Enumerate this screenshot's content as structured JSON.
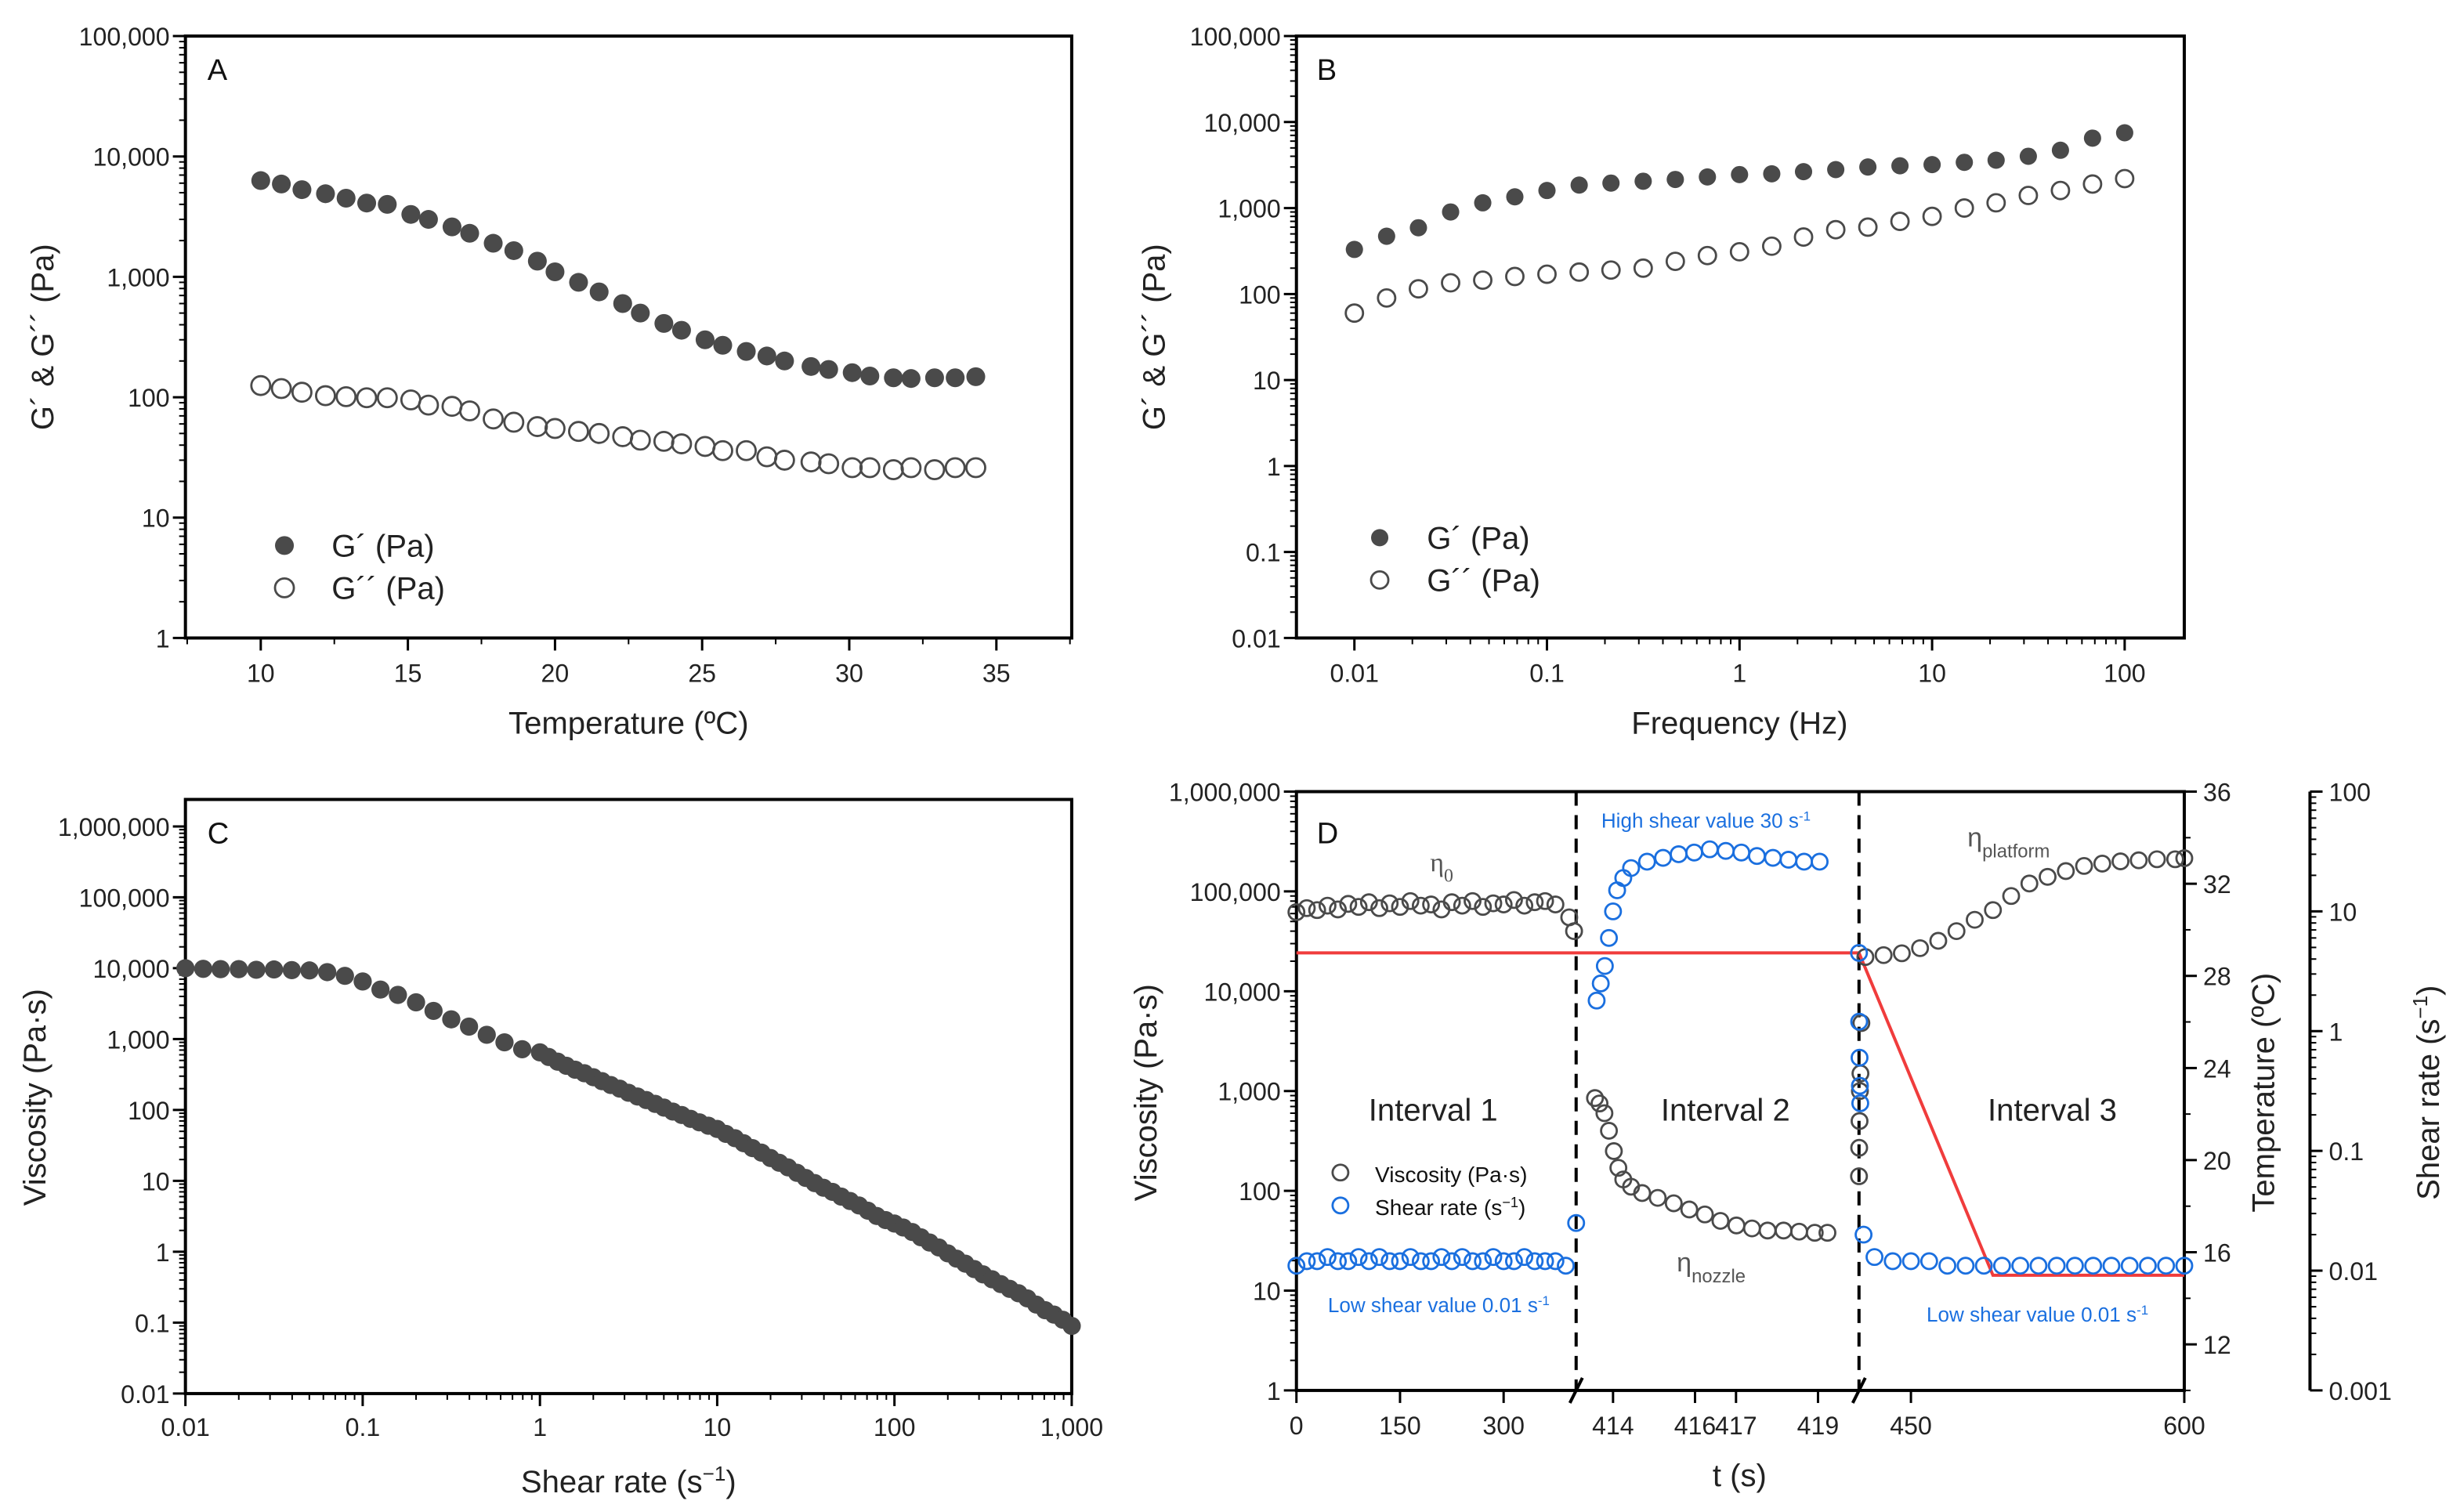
{
  "colors": {
    "marker": "#4a4a4a",
    "blue": "#1a6fdf",
    "red": "#f03c3c",
    "axis": "#000000"
  },
  "chart_data": [
    {
      "panel": "A",
      "type": "scatter",
      "xlabel": "Temperature (ºC)",
      "ylabel": "G´ & G´´ (Pa)",
      "xscale": "linear",
      "yscale": "log",
      "xlim": [
        7.44,
        37.56
      ],
      "ylim": [
        1,
        100000
      ],
      "xticks": [
        10,
        15,
        20,
        25,
        30,
        35
      ],
      "xtick_labels": [
        "10",
        "15",
        "20",
        "25",
        "30",
        "35"
      ],
      "yticks": [
        1,
        10,
        100,
        1000,
        10000,
        100000
      ],
      "ytick_labels": [
        "1",
        "10",
        "100",
        "1,000",
        "10,000",
        "100,000"
      ],
      "legend_position": "bottom-left",
      "x": [
        10,
        10.7,
        11.4,
        12.2,
        12.9,
        13.6,
        14.3,
        15.1,
        15.7,
        16.5,
        17.1,
        17.9,
        18.6,
        19.4,
        20,
        20.8,
        21.5,
        22.3,
        22.9,
        23.7,
        24.3,
        25.1,
        25.7,
        26.5,
        27.2,
        27.8,
        28.7,
        29.3,
        30.1,
        30.7,
        31.5,
        32.1,
        32.9,
        33.6,
        34.3
      ],
      "series": [
        {
          "name": "G´ (Pa)",
          "marker": "filled",
          "values": [
            6300,
            5900,
            5300,
            4900,
            4500,
            4100,
            4000,
            3300,
            3000,
            2600,
            2300,
            1900,
            1650,
            1350,
            1100,
            900,
            750,
            600,
            500,
            410,
            360,
            300,
            270,
            240,
            220,
            200,
            180,
            170,
            160,
            150,
            145,
            143,
            145,
            145,
            148
          ]
        },
        {
          "name": "G´´ (Pa)",
          "marker": "open",
          "values": [
            125,
            118,
            110,
            103,
            101,
            99,
            99,
            95,
            86,
            84,
            77,
            66,
            62,
            57,
            55,
            52,
            50,
            47,
            44,
            43,
            41,
            39,
            36,
            36,
            32,
            30,
            29,
            28,
            26,
            26,
            25,
            26,
            25,
            26,
            26
          ]
        }
      ]
    },
    {
      "panel": "B",
      "type": "scatter",
      "xlabel": "Frequency (Hz)",
      "ylabel": "G´ & G´´ (Pa)",
      "xscale": "log",
      "yscale": "log",
      "xlim": [
        0.005,
        204
      ],
      "ylim": [
        0.01,
        100000
      ],
      "xticks": [
        0.01,
        0.1,
        1,
        10,
        100
      ],
      "xtick_labels": [
        "0.01",
        "0.1",
        "1",
        "10",
        "100"
      ],
      "yticks": [
        0.01,
        0.1,
        1,
        10,
        100,
        1000,
        10000,
        100000
      ],
      "ytick_labels": [
        "0.01",
        "0.1",
        "1",
        "10",
        "100",
        "1,000",
        "10,000",
        "100,000"
      ],
      "legend_position": "bottom-left",
      "x": [
        0.01,
        0.0147,
        0.0215,
        0.0316,
        0.0464,
        0.0681,
        0.1,
        0.147,
        0.215,
        0.316,
        0.464,
        0.681,
        1,
        1.47,
        2.15,
        3.16,
        4.64,
        6.81,
        10,
        14.7,
        21.5,
        31.6,
        46.4,
        68.1,
        100
      ],
      "series": [
        {
          "name": "G´ (Pa)",
          "marker": "filled",
          "values": [
            330,
            470,
            590,
            900,
            1150,
            1350,
            1600,
            1850,
            1950,
            2050,
            2150,
            2300,
            2450,
            2500,
            2650,
            2800,
            3000,
            3100,
            3200,
            3400,
            3600,
            4000,
            4700,
            6500,
            7500
          ]
        },
        {
          "name": "G´´ (Pa)",
          "marker": "open",
          "values": [
            60,
            90,
            115,
            135,
            145,
            160,
            170,
            180,
            190,
            200,
            240,
            280,
            310,
            360,
            460,
            560,
            600,
            700,
            800,
            1000,
            1150,
            1400,
            1600,
            1900,
            2200
          ]
        }
      ]
    },
    {
      "panel": "C",
      "type": "scatter",
      "xlabel": "Shear rate (s",
      "xlabel_sup": "−1",
      "xlabel_end": ")",
      "ylabel": "Viscosity (Pa·s)",
      "xscale": "log",
      "yscale": "log",
      "xlim": [
        0.01,
        1000
      ],
      "ylim": [
        0.01,
        2400000
      ],
      "xticks": [
        0.01,
        0.1,
        1,
        10,
        100,
        1000
      ],
      "xtick_labels": [
        "0.01",
        "0.1",
        "1",
        "10",
        "100",
        "1,000"
      ],
      "yticks": [
        0.01,
        0.1,
        1,
        10,
        100,
        1000,
        10000,
        100000,
        1000000
      ],
      "ytick_labels": [
        "0.01",
        "0.1",
        "1",
        "10",
        "100",
        "1,000",
        "10,000",
        "100,000",
        "1,000,000"
      ],
      "x": [
        0.01,
        0.0126,
        0.0158,
        0.02,
        0.0251,
        0.0316,
        0.0398,
        0.0501,
        0.0631,
        0.0794,
        0.1,
        0.126,
        0.158,
        0.2,
        0.251,
        0.316,
        0.398,
        0.501,
        0.631,
        0.794,
        1,
        1.12,
        1.26,
        1.41,
        1.58,
        1.78,
        2.0,
        2.24,
        2.51,
        2.82,
        3.16,
        3.55,
        3.98,
        4.47,
        5.01,
        5.62,
        6.31,
        7.08,
        7.94,
        8.91,
        10,
        11.2,
        12.6,
        14.1,
        15.8,
        17.8,
        20,
        22.4,
        25.1,
        28.2,
        31.6,
        35.5,
        39.8,
        44.7,
        50.1,
        56.2,
        63.1,
        70.8,
        79.4,
        89.1,
        100,
        112,
        126,
        141,
        158,
        178,
        200,
        224,
        251,
        282,
        316,
        355,
        398,
        447,
        501,
        562,
        631,
        708,
        794,
        891,
        1000
      ],
      "series": [
        {
          "name": "Viscosity",
          "marker": "filled",
          "values": [
            10000,
            9800,
            9700,
            9700,
            9500,
            9600,
            9400,
            9300,
            8800,
            7800,
            6500,
            5000,
            4200,
            3300,
            2500,
            1900,
            1500,
            1150,
            900,
            720,
            650,
            560,
            480,
            420,
            370,
            330,
            290,
            255,
            225,
            200,
            175,
            155,
            138,
            122,
            108,
            95,
            85,
            75,
            67,
            60,
            54,
            46,
            40,
            34,
            29,
            25,
            21,
            18,
            15.5,
            13,
            11,
            9.3,
            8,
            7,
            6,
            5.2,
            4.5,
            3.8,
            3.2,
            2.8,
            2.5,
            2.2,
            1.9,
            1.6,
            1.35,
            1.15,
            0.95,
            0.8,
            0.68,
            0.57,
            0.48,
            0.41,
            0.35,
            0.3,
            0.26,
            0.22,
            0.18,
            0.15,
            0.13,
            0.11,
            0.09
          ]
        }
      ]
    },
    {
      "panel": "D",
      "type": "scatter",
      "xlabel": "t (s)",
      "ylabel": "Viscosity (Pa·s)",
      "ylabel_right1": "Temperature (ºC)",
      "ylabel_right2": "Shear rate (s",
      "ylabel_right2_sup": "−1",
      "ylabel_right2_end": ")",
      "x_segments": [
        [
          0,
          405
        ],
        [
          413.1,
          420
        ],
        [
          421.5,
          600
        ]
      ],
      "xticks": [
        0,
        150,
        300,
        414,
        416,
        417,
        419,
        450,
        600
      ],
      "xtick_labels": [
        "0",
        "150",
        "300",
        "414",
        "416",
        "417",
        "419",
        "450",
        "600"
      ],
      "ylim": [
        1,
        1000000
      ],
      "yticks": [
        1,
        10,
        100,
        1000,
        10000,
        100000,
        1000000
      ],
      "ytick_labels": [
        "1",
        "10",
        "100",
        "1,000",
        "10,000",
        "100,000",
        "1,000,000"
      ],
      "temp_lim": [
        10,
        36
      ],
      "temp_ticks": [
        12,
        16,
        20,
        24,
        28,
        32,
        36
      ],
      "temp_tick_labels": [
        "12",
        "16",
        "20",
        "24",
        "28",
        "32",
        "36"
      ],
      "shear_lim": [
        0.001,
        100
      ],
      "shear_ticks": [
        0.001,
        0.01,
        0.1,
        1,
        10,
        100
      ],
      "shear_tick_labels": [
        "0.001",
        "0.01",
        "0.1",
        "1",
        "10",
        "100"
      ],
      "intervals": [
        "Interval 1",
        "Interval 2",
        "Interval 3"
      ],
      "annotations": {
        "eta": "η",
        "eta0_sub": "0",
        "eta_nozzle_sub": "nozzle",
        "eta_platform_sub": "platform",
        "high_shear": "High shear value 30 s",
        "low_shear_1": "Low shear value 0.01 s",
        "low_shear_2": "Low shear value 0.01 s",
        "sup": "-1"
      },
      "legend": [
        {
          "name": "Viscosity (Pa·s)",
          "marker": "open-gray"
        },
        {
          "name": "Shear rate (s",
          "sup": "−1",
          "end": ")",
          "marker": "open-blue"
        }
      ],
      "viscosity": {
        "t": [
          0,
          15,
          30,
          45,
          60,
          75,
          90,
          105,
          120,
          135,
          150,
          165,
          180,
          195,
          210,
          225,
          240,
          255,
          270,
          285,
          300,
          315,
          330,
          345,
          360,
          375,
          395,
          402,
          413.56,
          413.67,
          413.79,
          413.9,
          414.02,
          414.13,
          414.25,
          414.44,
          414.71,
          415.09,
          415.48,
          415.86,
          416.24,
          416.62,
          417.01,
          417.39,
          417.77,
          418.16,
          418.54,
          418.92,
          419.23,
          421.5,
          421.6,
          421.8,
          422.0,
          422.3,
          422.8,
          425,
          435,
          445,
          455,
          465,
          475,
          485,
          495,
          505,
          515,
          525,
          535,
          545,
          555,
          565,
          575,
          585,
          595,
          600
        ],
        "values": [
          62000,
          68000,
          65000,
          72000,
          66000,
          75000,
          70000,
          78000,
          68000,
          76000,
          70000,
          80000,
          72000,
          74000,
          66000,
          78000,
          72000,
          80000,
          70000,
          76000,
          74000,
          82000,
          72000,
          78000,
          80000,
          74000,
          55000,
          40000,
          850,
          750,
          600,
          400,
          250,
          170,
          130,
          110,
          95,
          85,
          75,
          65,
          58,
          50,
          45,
          42,
          40,
          40,
          39,
          38,
          38,
          140,
          270,
          500,
          1000,
          1500,
          4800,
          22000,
          23000,
          24000,
          27000,
          32000,
          40000,
          52000,
          65000,
          90000,
          120000,
          140000,
          160000,
          180000,
          190000,
          200000,
          205000,
          210000,
          210000,
          215000
        ]
      },
      "shear_rate": {
        "t": [
          0,
          15,
          30,
          45,
          60,
          75,
          90,
          105,
          120,
          135,
          150,
          165,
          180,
          195,
          210,
          225,
          240,
          255,
          270,
          285,
          300,
          315,
          330,
          345,
          360,
          375,
          390,
          405,
          413.6,
          413.7,
          413.8,
          413.9,
          414.0,
          414.1,
          414.25,
          414.44,
          414.83,
          415.22,
          415.6,
          415.98,
          416.36,
          416.75,
          417.13,
          417.51,
          417.9,
          418.28,
          418.66,
          419.04,
          421.5,
          421.6,
          421.8,
          422.0,
          422.2,
          424,
          430,
          440,
          450,
          460,
          470,
          480,
          490,
          500,
          510,
          520,
          530,
          540,
          550,
          560,
          570,
          580,
          590,
          600
        ],
        "values": [
          0.011,
          0.012,
          0.012,
          0.013,
          0.012,
          0.012,
          0.013,
          0.012,
          0.013,
          0.012,
          0.012,
          0.013,
          0.012,
          0.012,
          0.013,
          0.012,
          0.013,
          0.012,
          0.012,
          0.013,
          0.012,
          0.012,
          0.013,
          0.012,
          0.012,
          0.012,
          0.011,
          0.025,
          1.8,
          2.5,
          3.5,
          6,
          10,
          15,
          19,
          23,
          26,
          28,
          30,
          31,
          33,
          32,
          31,
          29,
          28,
          27,
          26,
          26,
          4.5,
          1.2,
          0.6,
          0.35,
          0.25,
          0.02,
          0.013,
          0.012,
          0.012,
          0.012,
          0.011,
          0.011,
          0.011,
          0.011,
          0.011,
          0.011,
          0.011,
          0.011,
          0.011,
          0.011,
          0.011,
          0.011,
          0.011,
          0.011
        ]
      },
      "temperature": {
        "t": [
          0,
          421.5,
          495,
          600
        ],
        "values": [
          29,
          29,
          15,
          15
        ]
      }
    }
  ]
}
